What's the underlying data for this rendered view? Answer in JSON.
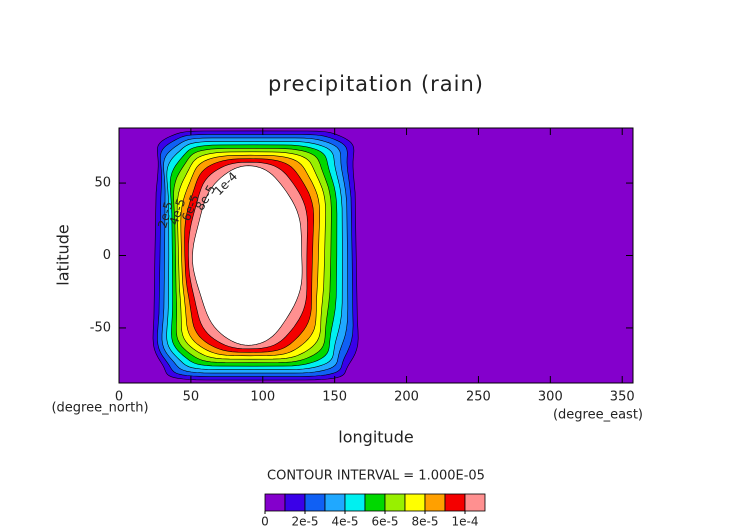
{
  "chart_data": {
    "type": "contour",
    "title": "precipitation (rain)",
    "x_label": "longitude",
    "y_label": "latitude",
    "x_unit": "(degree_east)",
    "y_unit": "(degree_north)",
    "note": "CONTOUR INTERVAL = 1.000E-05",
    "xlim": [
      0,
      357.5
    ],
    "xticks": [
      0,
      50,
      100,
      150,
      200,
      250,
      300,
      350
    ],
    "ylim": [
      -88,
      88
    ],
    "yticks": [
      -50,
      0,
      50
    ],
    "levels": [
      0,
      1e-05,
      2e-05,
      3e-05,
      4e-05,
      5e-05,
      6e-05,
      7e-05,
      8e-05,
      9e-05,
      0.0001
    ],
    "colors": [
      "#8400cc",
      "#3a00e8",
      "#1060f4",
      "#20a8ff",
      "#00f0f0",
      "#00d800",
      "#98f000",
      "#ffff00",
      "#ffa000",
      "#f40000",
      "#ff9090"
    ],
    "colorbar_ticks": [
      0,
      {
        "value": 2e-05,
        "label": "2e-5"
      },
      {
        "value": 4e-05,
        "label": "4e-5"
      },
      {
        "value": 6e-05,
        "label": "6e-5"
      },
      {
        "value": 8e-05,
        "label": "8e-5"
      },
      {
        "value": 0.0001,
        "label": "1e-4"
      }
    ],
    "contour_labels": [
      "2e-5",
      "4e-5",
      "6e-5",
      "8e-5",
      "1e-4"
    ]
  }
}
